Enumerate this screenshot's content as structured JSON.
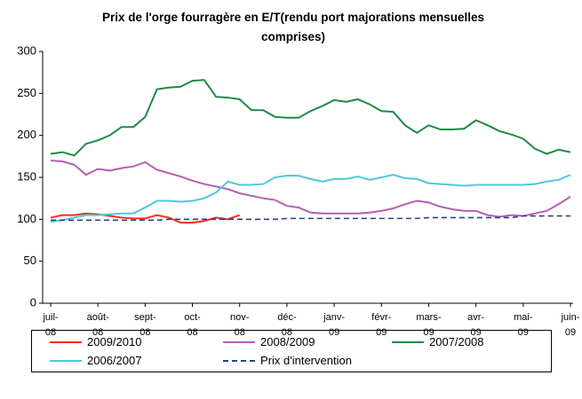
{
  "chart_data": {
    "type": "line",
    "title": "Prix de l'orge fourragère en E/T(rendu port majorations mensuelles comprises)",
    "categories": [
      "juil-08",
      null,
      null,
      null,
      "août-08",
      null,
      null,
      null,
      "sept-08",
      null,
      null,
      null,
      "oct-08",
      null,
      null,
      null,
      "nov-08",
      null,
      null,
      null,
      "déc-08",
      null,
      null,
      null,
      "janv-09",
      null,
      null,
      null,
      "févr-09",
      null,
      null,
      null,
      "mars-09",
      null,
      null,
      null,
      "avr-09",
      null,
      null,
      null,
      "mai-09",
      null,
      null,
      null,
      "juin-09"
    ],
    "series": [
      {
        "name": "2009/2010",
        "color": "#ff2a1a",
        "dashed": false,
        "values": [
          102,
          105,
          105,
          107,
          106,
          104,
          102,
          101,
          101,
          105,
          102,
          96,
          96,
          98,
          102,
          100,
          105,
          null,
          null,
          null,
          null,
          null,
          null,
          null,
          null,
          null,
          null,
          null,
          null,
          null,
          null,
          null,
          null,
          null,
          null,
          null,
          null,
          null,
          null,
          null,
          null,
          null,
          null,
          null,
          null
        ]
      },
      {
        "name": "2008/2009",
        "color": "#b45fb4",
        "dashed": false,
        "values": [
          170,
          169,
          165,
          153,
          160,
          158,
          161,
          163,
          168,
          159,
          155,
          151,
          146,
          142,
          139,
          136,
          131,
          128,
          125,
          123,
          116,
          114,
          108,
          107,
          107,
          107,
          107,
          108,
          110,
          113,
          118,
          122,
          120,
          115,
          112,
          110,
          110,
          105,
          103,
          105,
          104,
          107,
          110,
          118,
          127
        ]
      },
      {
        "name": "2007/2008",
        "color": "#1e8a44",
        "dashed": false,
        "values": [
          178,
          180,
          176,
          190,
          194,
          200,
          210,
          210,
          222,
          255,
          257,
          258,
          265,
          266,
          246,
          245,
          243,
          230,
          230,
          222,
          221,
          221,
          229,
          235,
          242,
          240,
          243,
          237,
          229,
          228,
          212,
          203,
          212,
          207,
          207,
          208,
          218,
          212,
          205,
          201,
          196,
          184,
          178,
          183,
          180
        ]
      },
      {
        "name": "2006/2007",
        "color": "#4dc8e0",
        "dashed": false,
        "values": [
          97,
          99,
          102,
          105,
          105,
          106,
          107,
          107,
          114,
          122,
          122,
          121,
          122,
          125,
          132,
          145,
          141,
          141,
          142,
          150,
          152,
          152,
          148,
          145,
          148,
          148,
          151,
          147,
          150,
          153,
          149,
          148,
          143,
          142,
          141,
          140,
          141,
          141,
          141,
          141,
          141,
          142,
          145,
          147,
          153
        ]
      },
      {
        "name": "Prix d'intervention",
        "color": "#2b3f8c",
        "dashed": true,
        "values": [
          99,
          99,
          99,
          99,
          99,
          99,
          99,
          99,
          99,
          99,
          100,
          100,
          100,
          100,
          100,
          100,
          100,
          100,
          100,
          100,
          101,
          101,
          101,
          101,
          101,
          101,
          101,
          101,
          101,
          101,
          101,
          101,
          102,
          102,
          102,
          102,
          102,
          102,
          102,
          102,
          104,
          104,
          104,
          104,
          104
        ]
      }
    ],
    "ylim": [
      0,
      300
    ],
    "yticks": [
      0,
      50,
      100,
      150,
      200,
      250,
      300
    ],
    "grid": false
  }
}
